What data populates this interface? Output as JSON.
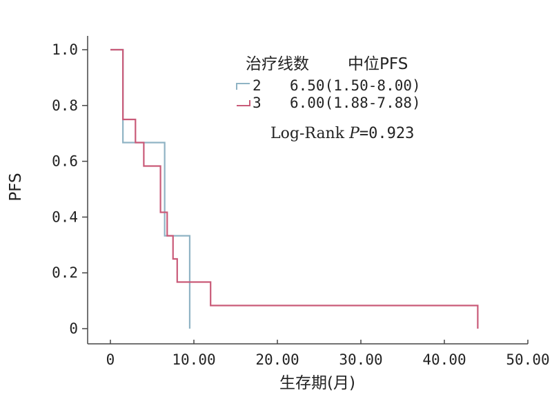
{
  "chart_data": {
    "type": "line",
    "title": "",
    "xlabel": "生存期(月)",
    "ylabel": "PFS",
    "xlim": [
      0,
      50
    ],
    "ylim": [
      0,
      1.0
    ],
    "x_ticks": [
      0,
      10,
      20,
      30,
      40,
      50
    ],
    "x_tick_labels": [
      "0",
      "10.00",
      "20.00",
      "30.00",
      "40.00",
      "50.00"
    ],
    "y_ticks": [
      0,
      0.2,
      0.4,
      0.6,
      0.8,
      1.0
    ],
    "y_tick_labels": [
      "0",
      "0.2",
      "0.4",
      "0.6",
      "0.8",
      "1.0"
    ],
    "grid": false,
    "legend": {
      "position": "top-right",
      "title_group": "治疗线数",
      "title_median": "中位PFS",
      "entries": [
        {
          "group": "2",
          "median": "6.50(1.50-8.00)"
        },
        {
          "group": "3",
          "median": "6.00(1.88-7.88)"
        }
      ]
    },
    "annotation": {
      "prefix": "Log-Rank ",
      "p_symbol": "P",
      "value": "=0.923"
    },
    "series": [
      {
        "name": "2",
        "color": "#8fb3c4",
        "steps": [
          [
            0,
            1.0
          ],
          [
            1.5,
            0.667
          ],
          [
            6.5,
            0.333
          ],
          [
            9.5,
            0.0
          ]
        ]
      },
      {
        "name": "3",
        "color": "#c95a78",
        "steps": [
          [
            0,
            1.0
          ],
          [
            1.5,
            0.75
          ],
          [
            3.0,
            0.667
          ],
          [
            4.0,
            0.583
          ],
          [
            6.0,
            0.417
          ],
          [
            6.8,
            0.333
          ],
          [
            7.5,
            0.25
          ],
          [
            8.0,
            0.167
          ],
          [
            12.0,
            0.083
          ],
          [
            44.0,
            0.0
          ]
        ]
      }
    ]
  }
}
